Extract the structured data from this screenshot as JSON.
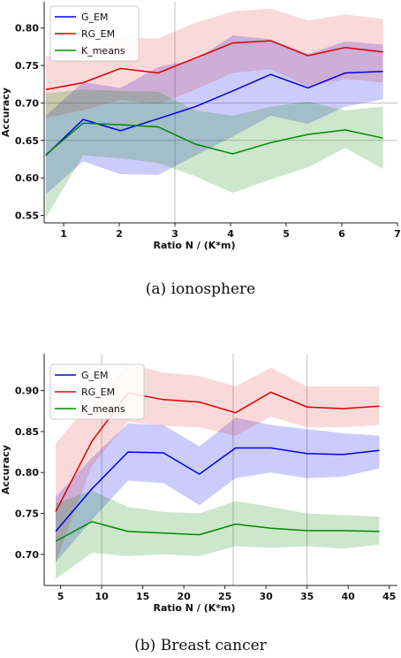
{
  "chart_data": [
    {
      "type": "line",
      "caption": "(a) ionosphere",
      "xlabel": "Ratio N / (K*m)",
      "ylabel": "Accuracy",
      "xlim": [
        0.65,
        7.0
      ],
      "ylim": [
        0.54,
        0.835
      ],
      "xticks": [
        1,
        2,
        3,
        4,
        5,
        6,
        7
      ],
      "yticks": [
        0.55,
        0.6,
        0.65,
        0.7,
        0.75,
        0.8
      ],
      "ytick_labels": [
        "0.55",
        "0.60",
        "0.65",
        "0.70",
        "0.75",
        "0.80"
      ],
      "grid": "sparse",
      "legend_position": "top-left",
      "x": [
        0.68,
        1.35,
        2.02,
        2.7,
        3.37,
        4.04,
        4.72,
        5.39,
        6.06,
        6.74
      ],
      "series": [
        {
          "name": "G_EM",
          "color": "#0000ee",
          "values": [
            0.63,
            0.678,
            0.663,
            0.679,
            0.695,
            0.716,
            0.738,
            0.72,
            0.74,
            0.742
          ],
          "lower": [
            0.578,
            0.622,
            0.605,
            0.604,
            0.63,
            0.655,
            0.683,
            0.672,
            0.695,
            0.705
          ],
          "upper": [
            0.683,
            0.728,
            0.72,
            0.748,
            0.758,
            0.79,
            0.785,
            0.765,
            0.782,
            0.778
          ]
        },
        {
          "name": "RG_EM",
          "color": "#dd0000",
          "values": [
            0.718,
            0.727,
            0.746,
            0.74,
            0.76,
            0.78,
            0.783,
            0.763,
            0.774,
            0.768
          ],
          "lower": [
            0.68,
            0.69,
            0.704,
            0.698,
            0.718,
            0.74,
            0.745,
            0.722,
            0.732,
            0.727
          ],
          "upper": [
            0.762,
            0.768,
            0.787,
            0.786,
            0.807,
            0.822,
            0.826,
            0.81,
            0.818,
            0.812
          ]
        },
        {
          "name": "K_means",
          "color": "#008800",
          "values": [
            0.631,
            0.673,
            0.671,
            0.668,
            0.645,
            0.632,
            0.647,
            0.658,
            0.664,
            0.653
          ],
          "lower": [
            0.547,
            0.63,
            0.626,
            0.62,
            0.602,
            0.58,
            0.598,
            0.614,
            0.64,
            0.612
          ],
          "upper": [
            0.713,
            0.718,
            0.716,
            0.715,
            0.69,
            0.683,
            0.695,
            0.702,
            0.69,
            0.695
          ]
        }
      ]
    },
    {
      "type": "line",
      "caption": "(b) Breast cancer",
      "xlabel": "Ratio N / (K*m)",
      "ylabel": "Accuracy",
      "xlim": [
        3.0,
        46.0
      ],
      "ylim": [
        0.662,
        0.945
      ],
      "xticks": [
        5,
        10,
        15,
        20,
        25,
        30,
        35,
        40,
        45
      ],
      "yticks": [
        0.7,
        0.75,
        0.8,
        0.85,
        0.9
      ],
      "ytick_labels": [
        "0.70",
        "0.75",
        "0.80",
        "0.85",
        "0.90"
      ],
      "grid": "sparse",
      "legend_position": "top-left",
      "x": [
        4.4,
        8.8,
        13.2,
        17.5,
        21.9,
        26.3,
        30.6,
        35.0,
        39.4,
        43.8
      ],
      "series": [
        {
          "name": "G_EM",
          "color": "#0000ee",
          "values": [
            0.728,
            0.78,
            0.825,
            0.824,
            0.798,
            0.83,
            0.83,
            0.823,
            0.822,
            0.827
          ],
          "lower": [
            0.69,
            0.742,
            0.79,
            0.787,
            0.76,
            0.793,
            0.8,
            0.793,
            0.795,
            0.805
          ],
          "upper": [
            0.77,
            0.818,
            0.86,
            0.858,
            0.832,
            0.867,
            0.858,
            0.853,
            0.848,
            0.845
          ]
        },
        {
          "name": "RG_EM",
          "color": "#dd0000",
          "values": [
            0.752,
            0.838,
            0.897,
            0.889,
            0.886,
            0.873,
            0.898,
            0.88,
            0.878,
            0.881
          ],
          "lower": [
            0.69,
            0.808,
            0.862,
            0.857,
            0.855,
            0.845,
            0.868,
            0.855,
            0.855,
            0.858
          ],
          "upper": [
            0.835,
            0.888,
            0.933,
            0.922,
            0.918,
            0.905,
            0.928,
            0.905,
            0.905,
            0.905
          ]
        },
        {
          "name": "K_means",
          "color": "#008800",
          "values": [
            0.716,
            0.74,
            0.728,
            0.726,
            0.724,
            0.737,
            0.732,
            0.729,
            0.729,
            0.728
          ],
          "lower": [
            0.67,
            0.702,
            0.698,
            0.7,
            0.698,
            0.71,
            0.708,
            0.71,
            0.707,
            0.712
          ],
          "upper": [
            0.762,
            0.778,
            0.758,
            0.752,
            0.75,
            0.765,
            0.758,
            0.75,
            0.748,
            0.746
          ]
        }
      ]
    }
  ]
}
